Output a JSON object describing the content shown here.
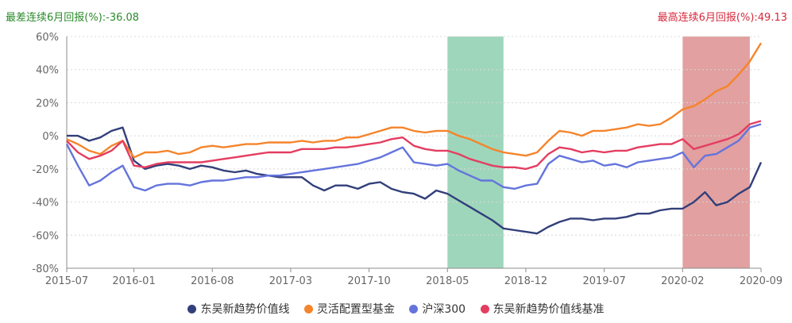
{
  "header": {
    "worst_label": "最差连续6月回报(%):",
    "worst_value": "-36.08",
    "best_label": "最高连续6月回报(%):",
    "best_value": "49.13"
  },
  "colors": {
    "fund": "#323f7a",
    "category": "#f5842b",
    "hs300": "#6474dc",
    "benchmark": "#e43d60",
    "worst_band": "#9ed6bb",
    "best_band": "#e2a0a0"
  },
  "chart_data": {
    "type": "line",
    "title": "",
    "xlabel": "",
    "ylabel": "",
    "ylim": [
      -80,
      60
    ],
    "yticks": [
      -80,
      -60,
      -40,
      -20,
      0,
      20,
      40,
      60
    ],
    "ytick_labels": [
      "-80%",
      "-60%",
      "-40%",
      "-20%",
      "0%",
      "20%",
      "40%",
      "60%"
    ],
    "x_start": "2015-07",
    "x_end": "2020-09",
    "xtick_labels": [
      "2015-07",
      "2016-01",
      "2016-08",
      "2017-03",
      "2017-10",
      "2018-05",
      "2018-12",
      "2019-07",
      "2020-02",
      "2020-09"
    ],
    "grid": "horizontal-dashed",
    "legend_position": "bottom",
    "highlight_bands": [
      {
        "name": "worst_6m",
        "start": "2018-05",
        "end": "2018-10"
      },
      {
        "name": "best_6m",
        "start": "2020-02",
        "end": "2020-08"
      }
    ],
    "x": [
      "2015-07",
      "2015-08",
      "2015-09",
      "2015-10",
      "2015-11",
      "2015-12",
      "2016-01",
      "2016-02",
      "2016-03",
      "2016-04",
      "2016-05",
      "2016-06",
      "2016-07",
      "2016-08",
      "2016-09",
      "2016-10",
      "2016-11",
      "2016-12",
      "2017-01",
      "2017-02",
      "2017-03",
      "2017-04",
      "2017-05",
      "2017-06",
      "2017-07",
      "2017-08",
      "2017-09",
      "2017-10",
      "2017-11",
      "2017-12",
      "2018-01",
      "2018-02",
      "2018-03",
      "2018-04",
      "2018-05",
      "2018-06",
      "2018-07",
      "2018-08",
      "2018-09",
      "2018-10",
      "2018-11",
      "2018-12",
      "2019-01",
      "2019-02",
      "2019-03",
      "2019-04",
      "2019-05",
      "2019-06",
      "2019-07",
      "2019-08",
      "2019-09",
      "2019-10",
      "2019-11",
      "2019-12",
      "2020-01",
      "2020-02",
      "2020-03",
      "2020-04",
      "2020-05",
      "2020-06",
      "2020-07",
      "2020-08",
      "2020-09"
    ],
    "series": [
      {
        "name": "东吴新趋势价值线",
        "key": "fund",
        "values": [
          0,
          0,
          -3,
          -1,
          3,
          5,
          -15,
          -20,
          -18,
          -17,
          -18,
          -20,
          -18,
          -19,
          -21,
          -22,
          -21,
          -23,
          -24,
          -25,
          -25,
          -25,
          -30,
          -33,
          -30,
          -30,
          -32,
          -29,
          -28,
          -32,
          -34,
          -35,
          -38,
          -33,
          -35,
          -39,
          -43,
          -47,
          -51,
          -56,
          -57,
          -58,
          -59,
          -55,
          -52,
          -50,
          -50,
          -51,
          -50,
          -50,
          -49,
          -47,
          -47,
          -45,
          -44,
          -44,
          -40,
          -34,
          -42,
          -40,
          -35,
          -31,
          -16
        ]
      },
      {
        "name": "灵活配置型基金",
        "key": "category",
        "values": [
          -2,
          -5,
          -9,
          -11,
          -6,
          -3,
          -13,
          -10,
          -10,
          -9,
          -11,
          -10,
          -7,
          -6,
          -7,
          -6,
          -5,
          -5,
          -4,
          -4,
          -4,
          -3,
          -4,
          -3,
          -3,
          -1,
          -1,
          1,
          3,
          5,
          5,
          3,
          2,
          3,
          3,
          0,
          -2,
          -5,
          -8,
          -10,
          -11,
          -12,
          -10,
          -3,
          3,
          2,
          0,
          3,
          3,
          4,
          5,
          7,
          6,
          7,
          11,
          16,
          18,
          22,
          27,
          30,
          37,
          45,
          56
        ]
      },
      {
        "name": "沪深300",
        "key": "hs300",
        "values": [
          -5,
          -18,
          -30,
          -27,
          -22,
          -18,
          -31,
          -33,
          -30,
          -29,
          -29,
          -30,
          -28,
          -27,
          -27,
          -26,
          -25,
          -25,
          -24,
          -24,
          -23,
          -22,
          -21,
          -20,
          -19,
          -18,
          -17,
          -15,
          -13,
          -10,
          -7,
          -16,
          -17,
          -18,
          -17,
          -21,
          -24,
          -27,
          -27,
          -31,
          -32,
          -30,
          -29,
          -17,
          -12,
          -14,
          -16,
          -15,
          -18,
          -17,
          -19,
          -16,
          -15,
          -14,
          -13,
          -10,
          -19,
          -12,
          -11,
          -7,
          -3,
          5,
          7
        ]
      },
      {
        "name": "东吴新趋势价值线基准",
        "key": "benchmark",
        "values": [
          -3,
          -10,
          -14,
          -12,
          -9,
          -3,
          -18,
          -19,
          -17,
          -16,
          -16,
          -16,
          -16,
          -15,
          -14,
          -13,
          -12,
          -11,
          -10,
          -10,
          -10,
          -8,
          -8,
          -8,
          -7,
          -7,
          -6,
          -5,
          -4,
          -2,
          -1,
          -6,
          -8,
          -9,
          -9,
          -11,
          -14,
          -16,
          -18,
          -19,
          -19,
          -20,
          -18,
          -11,
          -7,
          -8,
          -10,
          -9,
          -10,
          -9,
          -9,
          -7,
          -6,
          -5,
          -5,
          -2,
          -8,
          -6,
          -4,
          -2,
          1,
          7,
          9
        ]
      }
    ]
  },
  "legend": [
    "东吴新趋势价值线",
    "灵活配置型基金",
    "沪深300",
    "东吴新趋势价值线基准"
  ]
}
